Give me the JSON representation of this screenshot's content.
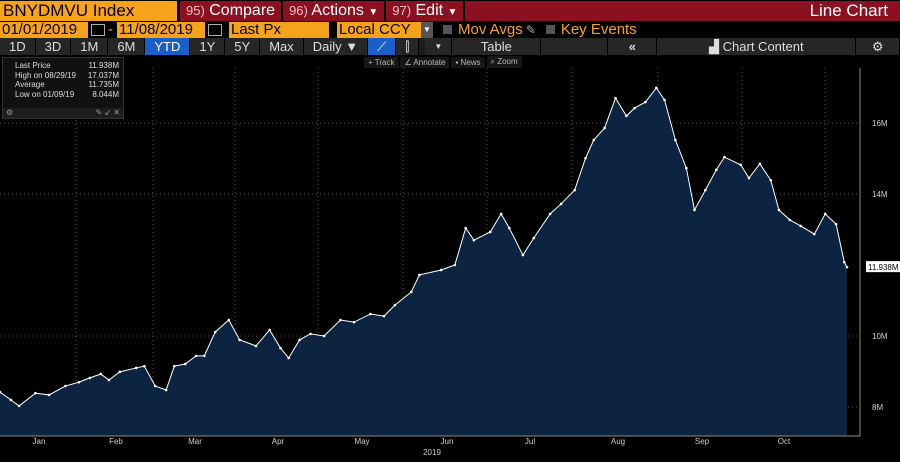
{
  "toolbar": {
    "ticker": "BNYDMVU Index",
    "compare_num": "95)",
    "compare": "Compare",
    "actions_num": "96)",
    "actions": "Actions",
    "edit_num": "97)",
    "edit": "Edit",
    "title": "Line Chart"
  },
  "range": {
    "start": "01/01/2019",
    "sep": "-",
    "end": "11/08/2019",
    "field": "Last Px",
    "currency": "Local CCY",
    "mov_avgs": "Mov Avgs",
    "key_events": "Key Events"
  },
  "periods": [
    "1D",
    "3D",
    "1M",
    "6M",
    "YTD",
    "1Y",
    "5Y",
    "Max"
  ],
  "frequency": "Daily ▼",
  "table_label": "Table",
  "collapse": "«",
  "chart_content": "Chart Content",
  "tools": [
    "Track",
    "Annotate",
    "News",
    "Zoom"
  ],
  "legend": [
    {
      "label": "Last Price",
      "value": "11.938M"
    },
    {
      "label": "High on 08/29/19",
      "value": "17.037M"
    },
    {
      "label": "Average",
      "value": "11.735M"
    },
    {
      "label": "Low on 01/09/19",
      "value": "8.044M"
    }
  ],
  "colors": {
    "accent": "#f7a21b",
    "menu": "#8b1020",
    "area": "#0c2442"
  },
  "chart_data": {
    "type": "area",
    "title": "BNYDMVU Index",
    "xlabel": "2019",
    "ylabel": "",
    "x_unit": "day of year 2019",
    "months": [
      "Jan",
      "Feb",
      "Mar",
      "Apr",
      "May",
      "Jun",
      "Jul",
      "Aug",
      "Sep",
      "Oct"
    ],
    "yticks": [
      "16M",
      "14M",
      "10M",
      "8M"
    ],
    "ytick_values": [
      16,
      14,
      10,
      8
    ],
    "last_label": "11.938M",
    "ylim": [
      6.2,
      17.4
    ],
    "xlim": [
      0,
      315
    ],
    "x": [
      0,
      4,
      7,
      13,
      18,
      24,
      29,
      33,
      37,
      40,
      44,
      50,
      53,
      57,
      61,
      64,
      68,
      72,
      75,
      79,
      84,
      88,
      94,
      99,
      103,
      106,
      110,
      114,
      119,
      125,
      130,
      136,
      141,
      145,
      151,
      154,
      162,
      167,
      171,
      174,
      180,
      184,
      187,
      192,
      196,
      202,
      206,
      211,
      215,
      218,
      222,
      226,
      230,
      233,
      237,
      241,
      244,
      248,
      252,
      255,
      259,
      263,
      266,
      272,
      275,
      279,
      283,
      286,
      290,
      294,
      299,
      303,
      307,
      310,
      311
    ],
    "values": [
      8.42,
      8.2,
      8.03,
      8.39,
      8.34,
      8.59,
      8.7,
      8.82,
      8.93,
      8.76,
      8.99,
      9.1,
      9.15,
      8.59,
      8.48,
      9.15,
      9.21,
      9.44,
      9.44,
      10.11,
      10.45,
      9.89,
      9.72,
      10.17,
      9.66,
      9.38,
      9.89,
      10.06,
      10.0,
      10.45,
      10.39,
      10.62,
      10.56,
      10.87,
      11.24,
      11.72,
      11.86,
      12.0,
      13.04,
      12.7,
      12.93,
      13.44,
      13.04,
      12.28,
      12.76,
      13.44,
      13.72,
      14.11,
      15.01,
      15.52,
      15.86,
      16.7,
      16.2,
      16.42,
      16.59,
      16.99,
      16.65,
      15.52,
      14.73,
      13.55,
      14.11,
      14.68,
      15.04,
      14.82,
      14.45,
      14.85,
      14.39,
      13.55,
      13.27,
      13.1,
      12.87,
      13.44,
      13.15,
      12.08,
      11.94
    ]
  }
}
